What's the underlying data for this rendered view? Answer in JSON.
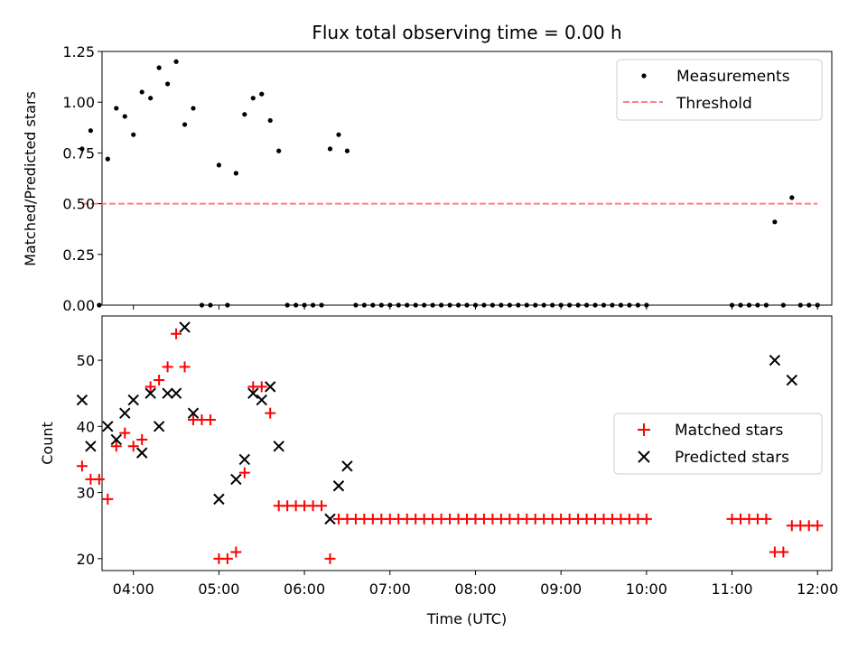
{
  "chart_data": [
    {
      "type": "scatter",
      "title": "Flux total observing time = 0.00 h",
      "xlabel": "",
      "ylabel": "Matched/Predicted stars",
      "xlim": [
        "03:38",
        "12:10"
      ],
      "ylim": [
        0,
        1.25
      ],
      "x_ticks": [
        "04:00",
        "05:00",
        "06:00",
        "07:00",
        "08:00",
        "09:00",
        "10:00",
        "11:00",
        "12:00"
      ],
      "y_ticks": [
        "0.00",
        "0.25",
        "0.50",
        "0.75",
        "1.00",
        "1.25"
      ],
      "legend": {
        "position": "top-right",
        "entries": [
          "Measurements",
          "Threshold"
        ]
      },
      "series": [
        {
          "name": "Measurements",
          "marker": "dot",
          "color": "#000000",
          "points": [
            [
              "03:24",
              0.77
            ],
            [
              "03:30",
              0.86
            ],
            [
              "03:36",
              0.0
            ],
            [
              "03:42",
              0.72
            ],
            [
              "03:48",
              0.97
            ],
            [
              "03:54",
              0.93
            ],
            [
              "04:00",
              0.84
            ],
            [
              "04:06",
              1.05
            ],
            [
              "04:12",
              1.02
            ],
            [
              "04:18",
              1.17
            ],
            [
              "04:24",
              1.09
            ],
            [
              "04:30",
              1.2
            ],
            [
              "04:36",
              0.89
            ],
            [
              "04:42",
              0.97
            ],
            [
              "04:48",
              0.0
            ],
            [
              "04:54",
              0.0
            ],
            [
              "05:00",
              0.69
            ],
            [
              "05:06",
              0.0
            ],
            [
              "05:12",
              0.65
            ],
            [
              "05:18",
              0.94
            ],
            [
              "05:24",
              1.02
            ],
            [
              "05:30",
              1.04
            ],
            [
              "05:36",
              0.91
            ],
            [
              "05:42",
              0.76
            ],
            [
              "05:48",
              0.0
            ],
            [
              "05:54",
              0.0
            ],
            [
              "06:00",
              0.0
            ],
            [
              "06:06",
              0.0
            ],
            [
              "06:12",
              0.0
            ],
            [
              "06:18",
              0.77
            ],
            [
              "06:24",
              0.84
            ],
            [
              "06:30",
              0.76
            ],
            [
              "06:36",
              0.0
            ],
            [
              "06:42",
              0.0
            ],
            [
              "06:48",
              0.0
            ],
            [
              "06:54",
              0.0
            ],
            [
              "07:00",
              0.0
            ],
            [
              "07:06",
              0.0
            ],
            [
              "07:12",
              0.0
            ],
            [
              "07:18",
              0.0
            ],
            [
              "07:24",
              0.0
            ],
            [
              "07:30",
              0.0
            ],
            [
              "07:36",
              0.0
            ],
            [
              "07:42",
              0.0
            ],
            [
              "07:48",
              0.0
            ],
            [
              "07:54",
              0.0
            ],
            [
              "08:00",
              0.0
            ],
            [
              "08:06",
              0.0
            ],
            [
              "08:12",
              0.0
            ],
            [
              "08:18",
              0.0
            ],
            [
              "08:24",
              0.0
            ],
            [
              "08:30",
              0.0
            ],
            [
              "08:36",
              0.0
            ],
            [
              "08:42",
              0.0
            ],
            [
              "08:48",
              0.0
            ],
            [
              "08:54",
              0.0
            ],
            [
              "09:00",
              0.0
            ],
            [
              "09:06",
              0.0
            ],
            [
              "09:12",
              0.0
            ],
            [
              "09:18",
              0.0
            ],
            [
              "09:24",
              0.0
            ],
            [
              "09:30",
              0.0
            ],
            [
              "09:36",
              0.0
            ],
            [
              "09:42",
              0.0
            ],
            [
              "09:48",
              0.0
            ],
            [
              "09:54",
              0.0
            ],
            [
              "10:00",
              0.0
            ],
            [
              "11:00",
              0.0
            ],
            [
              "11:06",
              0.0
            ],
            [
              "11:12",
              0.0
            ],
            [
              "11:18",
              0.0
            ],
            [
              "11:24",
              0.0
            ],
            [
              "11:30",
              0.41
            ],
            [
              "11:36",
              0.0
            ],
            [
              "11:42",
              0.53
            ],
            [
              "11:48",
              0.0
            ],
            [
              "11:54",
              0.0
            ],
            [
              "12:00",
              0.0
            ]
          ]
        },
        {
          "name": "Threshold",
          "marker": "dashed-line",
          "color": "#ff7f7f",
          "points": [
            [
              "03:24",
              0.5
            ],
            [
              "12:00",
              0.5
            ]
          ]
        }
      ]
    },
    {
      "type": "scatter",
      "title": "",
      "xlabel": "Time (UTC)",
      "ylabel": "Count",
      "xlim": [
        "03:38",
        "12:10"
      ],
      "ylim": [
        18.2,
        56.7
      ],
      "x_ticks": [
        "04:00",
        "05:00",
        "06:00",
        "07:00",
        "08:00",
        "09:00",
        "10:00",
        "11:00",
        "12:00"
      ],
      "y_ticks": [
        "20",
        "30",
        "40",
        "50"
      ],
      "legend": {
        "position": "center-right",
        "entries": [
          "Matched stars",
          "Predicted stars"
        ]
      },
      "series": [
        {
          "name": "Matched stars",
          "marker": "plus",
          "color": "#ff0000",
          "points": [
            [
              "03:24",
              34
            ],
            [
              "03:30",
              32
            ],
            [
              "03:36",
              32
            ],
            [
              "03:42",
              29
            ],
            [
              "03:48",
              37
            ],
            [
              "03:54",
              39
            ],
            [
              "04:00",
              37
            ],
            [
              "04:06",
              38
            ],
            [
              "04:12",
              46
            ],
            [
              "04:18",
              47
            ],
            [
              "04:24",
              49
            ],
            [
              "04:30",
              54
            ],
            [
              "04:36",
              49
            ],
            [
              "04:42",
              41
            ],
            [
              "04:48",
              41
            ],
            [
              "04:54",
              41
            ],
            [
              "05:00",
              20
            ],
            [
              "05:06",
              20
            ],
            [
              "05:12",
              21
            ],
            [
              "05:18",
              33
            ],
            [
              "05:24",
              46
            ],
            [
              "05:30",
              46
            ],
            [
              "05:36",
              42
            ],
            [
              "05:42",
              28
            ],
            [
              "05:48",
              28
            ],
            [
              "05:54",
              28
            ],
            [
              "06:00",
              28
            ],
            [
              "06:06",
              28
            ],
            [
              "06:12",
              28
            ],
            [
              "06:18",
              20
            ],
            [
              "06:24",
              26
            ],
            [
              "06:30",
              26
            ],
            [
              "06:36",
              26
            ],
            [
              "06:42",
              26
            ],
            [
              "06:48",
              26
            ],
            [
              "06:54",
              26
            ],
            [
              "07:00",
              26
            ],
            [
              "07:06",
              26
            ],
            [
              "07:12",
              26
            ],
            [
              "07:18",
              26
            ],
            [
              "07:24",
              26
            ],
            [
              "07:30",
              26
            ],
            [
              "07:36",
              26
            ],
            [
              "07:42",
              26
            ],
            [
              "07:48",
              26
            ],
            [
              "07:54",
              26
            ],
            [
              "08:00",
              26
            ],
            [
              "08:06",
              26
            ],
            [
              "08:12",
              26
            ],
            [
              "08:18",
              26
            ],
            [
              "08:24",
              26
            ],
            [
              "08:30",
              26
            ],
            [
              "08:36",
              26
            ],
            [
              "08:42",
              26
            ],
            [
              "08:48",
              26
            ],
            [
              "08:54",
              26
            ],
            [
              "09:00",
              26
            ],
            [
              "09:06",
              26
            ],
            [
              "09:12",
              26
            ],
            [
              "09:18",
              26
            ],
            [
              "09:24",
              26
            ],
            [
              "09:30",
              26
            ],
            [
              "09:36",
              26
            ],
            [
              "09:42",
              26
            ],
            [
              "09:48",
              26
            ],
            [
              "09:54",
              26
            ],
            [
              "10:00",
              26
            ],
            [
              "11:00",
              26
            ],
            [
              "11:06",
              26
            ],
            [
              "11:12",
              26
            ],
            [
              "11:18",
              26
            ],
            [
              "11:24",
              26
            ],
            [
              "11:30",
              21
            ],
            [
              "11:36",
              21
            ],
            [
              "11:42",
              25
            ],
            [
              "11:48",
              25
            ],
            [
              "11:54",
              25
            ],
            [
              "12:00",
              25
            ]
          ]
        },
        {
          "name": "Predicted stars",
          "marker": "x",
          "color": "#000000",
          "points": [
            [
              "03:24",
              44
            ],
            [
              "03:30",
              37
            ],
            [
              "03:42",
              40
            ],
            [
              "03:48",
              38
            ],
            [
              "03:54",
              42
            ],
            [
              "04:00",
              44
            ],
            [
              "04:06",
              36
            ],
            [
              "04:12",
              45
            ],
            [
              "04:18",
              40
            ],
            [
              "04:24",
              45
            ],
            [
              "04:30",
              45
            ],
            [
              "04:36",
              55
            ],
            [
              "04:42",
              42
            ],
            [
              "05:00",
              29
            ],
            [
              "05:12",
              32
            ],
            [
              "05:18",
              35
            ],
            [
              "05:24",
              45
            ],
            [
              "05:30",
              44
            ],
            [
              "05:36",
              46
            ],
            [
              "05:42",
              37
            ],
            [
              "06:18",
              26
            ],
            [
              "06:24",
              31
            ],
            [
              "06:30",
              34
            ],
            [
              "11:30",
              50
            ],
            [
              "11:42",
              47
            ]
          ]
        }
      ]
    }
  ]
}
